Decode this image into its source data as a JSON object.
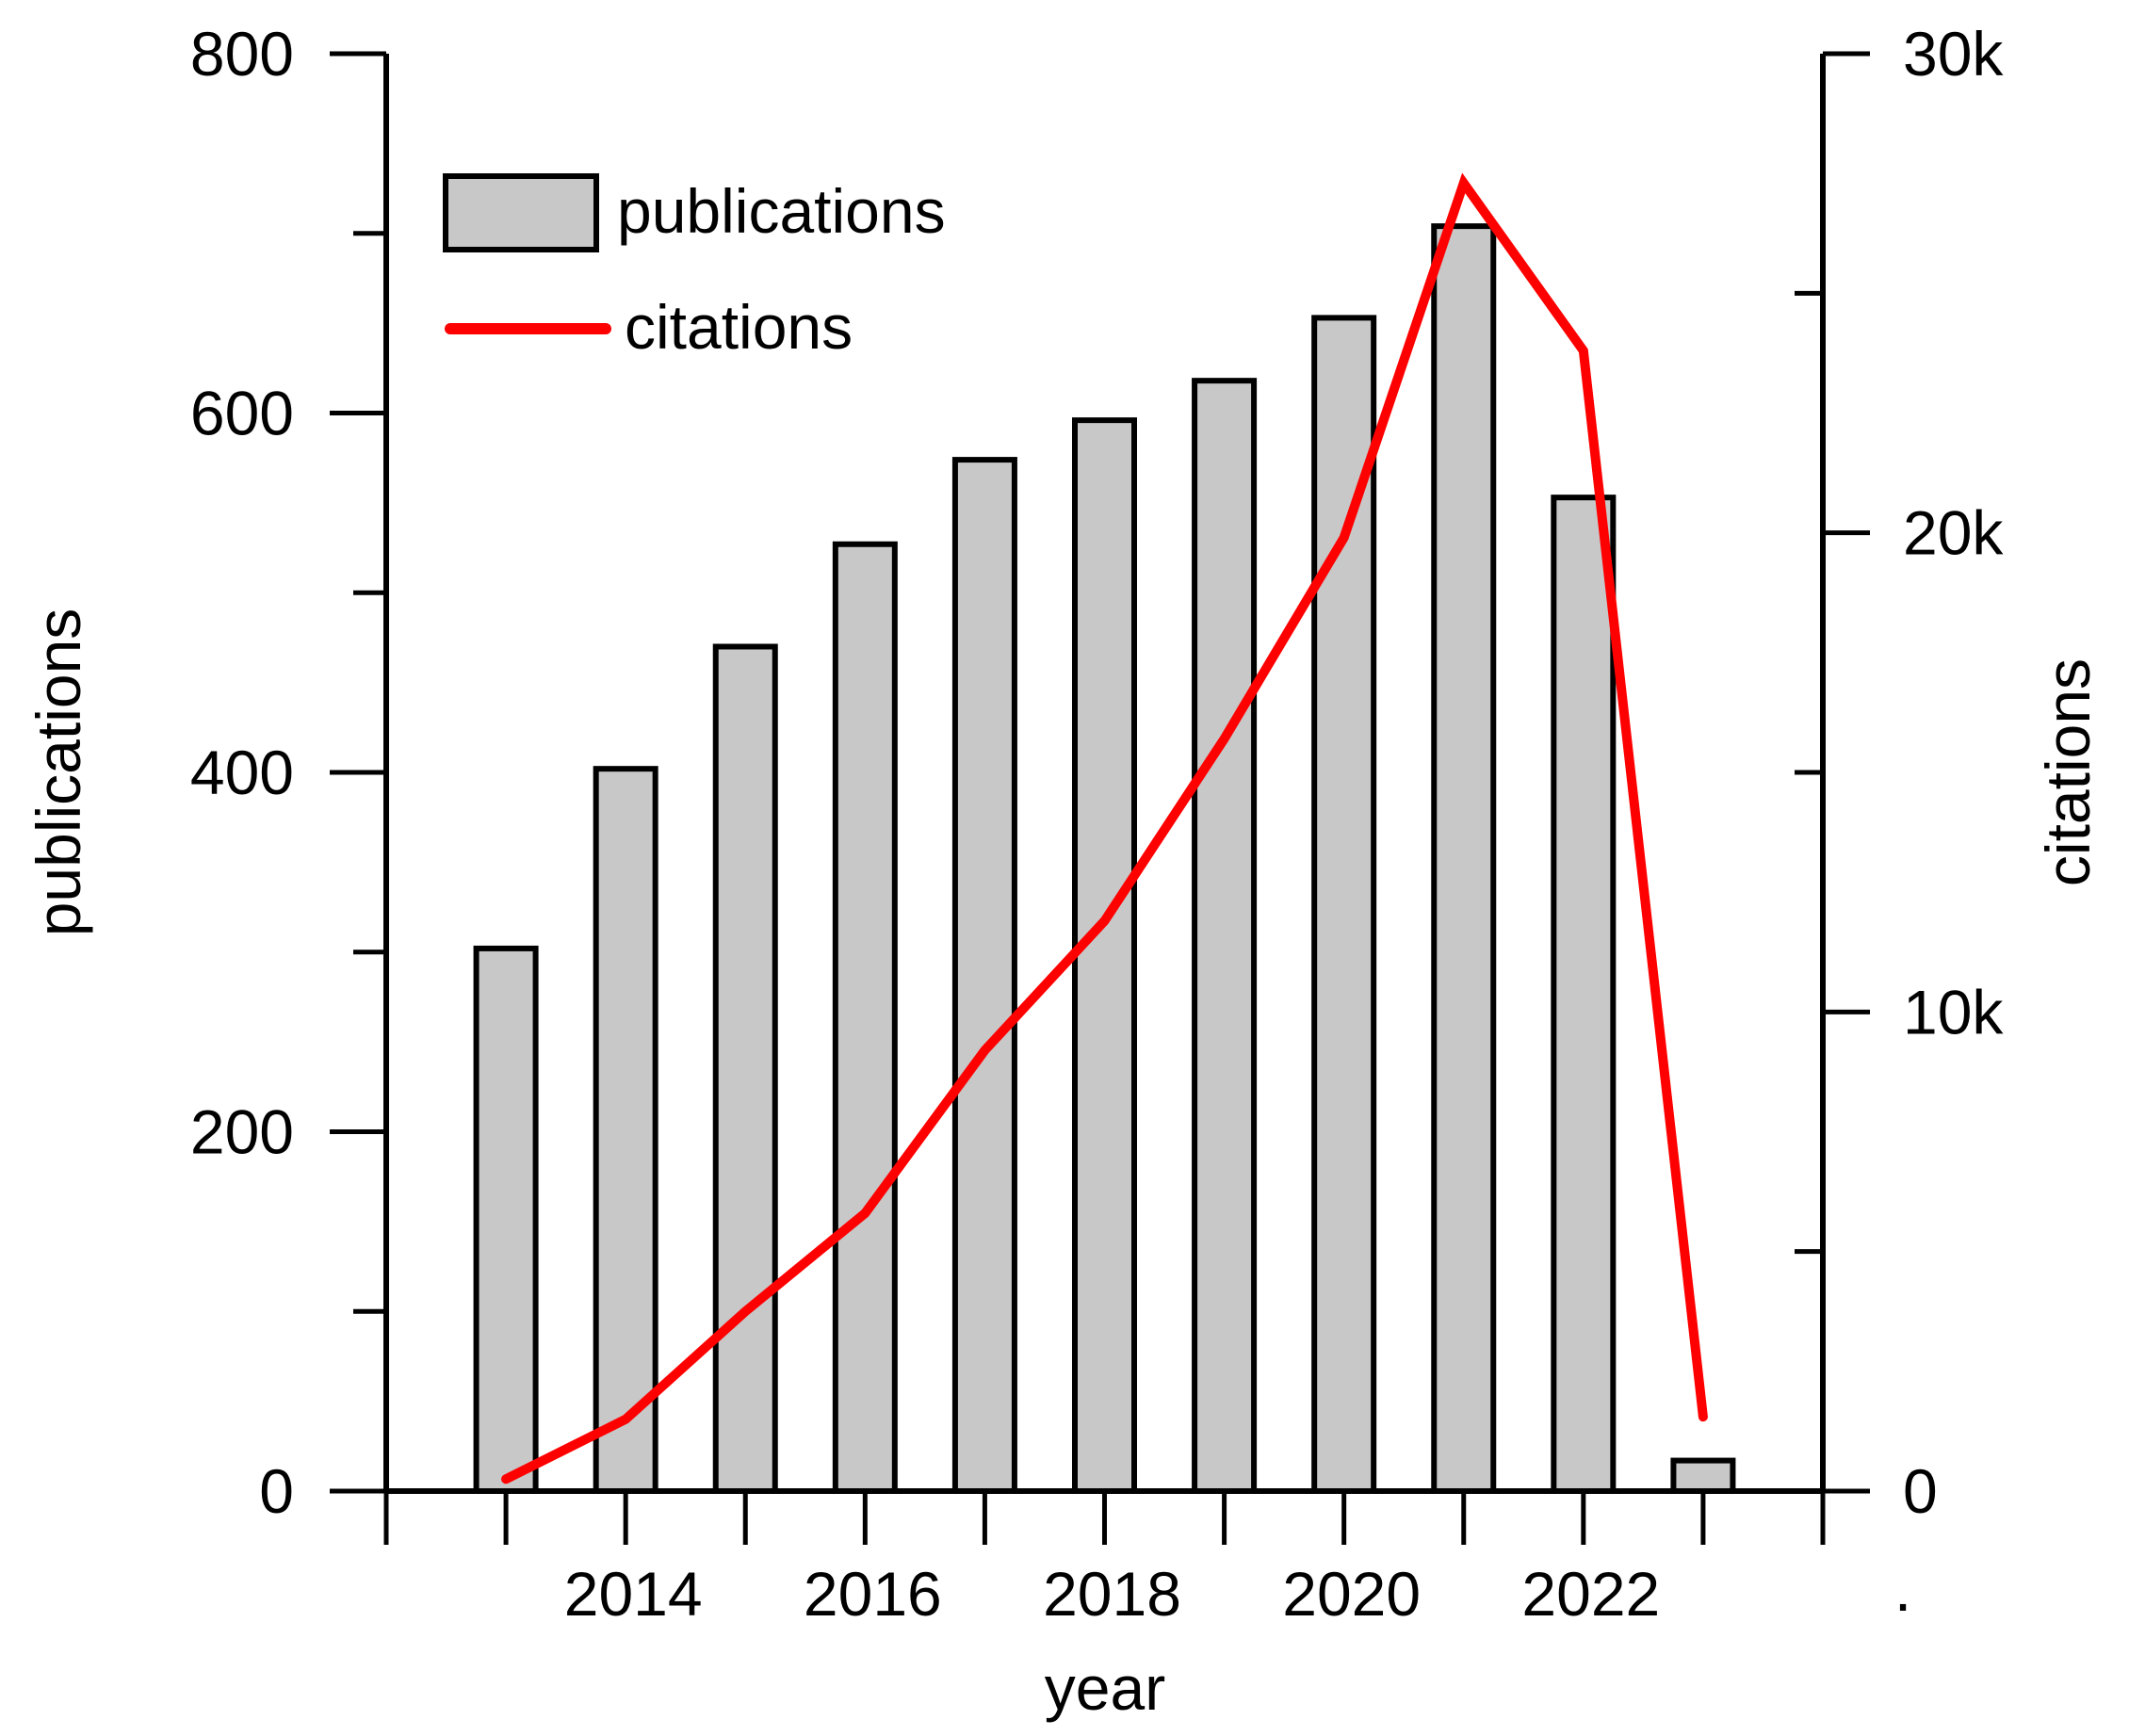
{
  "chart_data": {
    "type": "bar",
    "x_label": "year",
    "y_label_left": "publications",
    "y_label_right": "citations",
    "x_range": [
      2012,
      2024
    ],
    "x_ticks": [
      2014,
      2016,
      2018,
      2020,
      2022
    ],
    "x_tick_labels": [
      "2014",
      "2016",
      "2018",
      "2020",
      "2022"
    ],
    "ylim_left": [
      0,
      800
    ],
    "y_ticks_left": [
      0,
      200,
      400,
      600,
      800
    ],
    "y_tick_labels_left": [
      "0",
      "200",
      "400",
      "600",
      "800"
    ],
    "ylim_right": [
      0,
      30000
    ],
    "y_ticks_right": [
      0,
      10000,
      20000,
      30000
    ],
    "y_tick_labels_right": [
      "0",
      "10k",
      "20k",
      "30k"
    ],
    "categories": [
      2013,
      2014,
      2015,
      2016,
      2017,
      2018,
      2019,
      2020,
      2021,
      2022,
      2023
    ],
    "series": [
      {
        "name": "publications",
        "type": "bar",
        "axis": "left",
        "color": "#c8c8c8",
        "values": [
          302,
          402,
          470,
          527,
          574,
          596,
          618,
          653,
          704,
          553,
          17
        ]
      },
      {
        "name": "citations",
        "type": "line",
        "axis": "right",
        "color": "#ff0000",
        "values": [
          250,
          1500,
          3750,
          5800,
          9200,
          11900,
          15700,
          19900,
          27300,
          23800,
          1550
        ]
      }
    ],
    "legend": {
      "position": "top-left",
      "entries": [
        "publications",
        "citations"
      ]
    },
    "stray_mark": "."
  }
}
